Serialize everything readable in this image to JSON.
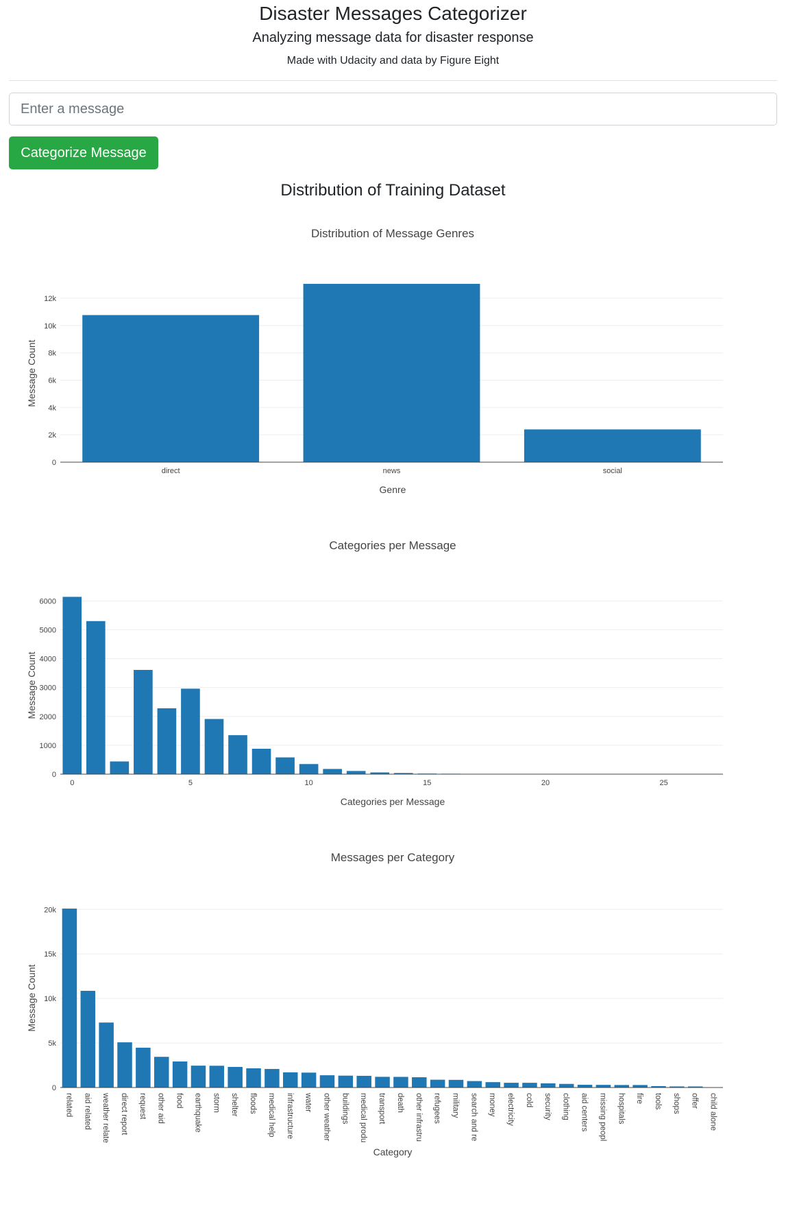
{
  "header": {
    "title": "Disaster Messages Categorizer",
    "subtitle": "Analyzing message data for disaster response",
    "credit": "Made with Udacity and data by Figure Eight"
  },
  "form": {
    "placeholder": "Enter a message",
    "value": "",
    "button_label": "Categorize Message"
  },
  "section_title": "Distribution of Training Dataset",
  "colors": {
    "bar": "#1f77b4",
    "button": "#28a745"
  },
  "chart_data": [
    {
      "type": "bar",
      "title": "Distribution of Message Genres",
      "xlabel": "Genre",
      "ylabel": "Message Count",
      "categories": [
        "direct",
        "news",
        "social"
      ],
      "values": [
        10766,
        13054,
        2396
      ],
      "ylim": [
        0,
        13000
      ],
      "yticks": [
        0,
        2000,
        4000,
        6000,
        8000,
        10000,
        12000
      ],
      "ytick_labels": [
        "0",
        "2k",
        "4k",
        "6k",
        "8k",
        "10k",
        "12k"
      ],
      "grid": true
    },
    {
      "type": "bar",
      "title": "Categories per Message",
      "xlabel": "Categories per Message",
      "ylabel": "Message Count",
      "x": [
        0,
        1,
        2,
        3,
        4,
        5,
        6,
        7,
        8,
        9,
        10,
        11,
        12,
        13,
        14,
        15,
        16,
        17,
        18,
        19,
        20,
        21,
        22,
        23,
        24,
        25,
        26,
        27
      ],
      "values": [
        6140,
        5300,
        440,
        3610,
        2280,
        2960,
        1910,
        1350,
        880,
        580,
        350,
        180,
        110,
        60,
        40,
        20,
        15,
        10,
        10,
        8,
        8,
        5,
        5,
        0,
        3,
        0,
        0,
        5
      ],
      "xlim": [
        -0.5,
        27.5
      ],
      "ylim": [
        0,
        6150
      ],
      "xticks": [
        0,
        5,
        10,
        15,
        20,
        25
      ],
      "xtick_labels": [
        "0",
        "5",
        "10",
        "15",
        "20",
        "25"
      ],
      "yticks": [
        0,
        1000,
        2000,
        3000,
        4000,
        5000,
        6000
      ],
      "ytick_labels": [
        "0",
        "1000",
        "2000",
        "3000",
        "4000",
        "5000",
        "6000"
      ],
      "grid": true
    },
    {
      "type": "bar",
      "title": "Messages per Category",
      "xlabel": "Category",
      "ylabel": "Message Count",
      "categories": [
        "related",
        "aid related",
        "weather relate",
        "direct report",
        "request",
        "other aid",
        "food",
        "earthquake",
        "storm",
        "shelter",
        "floods",
        "medical help",
        "infrastructure",
        "water",
        "other weather",
        "buildings",
        "medical produ",
        "transport",
        "death",
        "other infrastru",
        "refugees",
        "military",
        "search and re",
        "money",
        "electricity",
        "cold",
        "security",
        "clothing",
        "aid centers",
        "missing peopl",
        "hospitals",
        "fire",
        "tools",
        "shops",
        "offer",
        "child alone"
      ],
      "values": [
        20094,
        10860,
        7297,
        5075,
        4474,
        3446,
        2923,
        2455,
        2443,
        2314,
        2155,
        2084,
        1705,
        1672,
        1376,
        1333,
        1313,
        1201,
        1194,
        1151,
        875,
        860,
        724,
        604,
        532,
        530,
        471,
        405,
        309,
        298,
        283,
        282,
        159,
        120,
        118,
        0
      ],
      "ylim": [
        0,
        20100
      ],
      "yticks": [
        0,
        5000,
        10000,
        15000,
        20000
      ],
      "ytick_labels": [
        "0",
        "5k",
        "10k",
        "15k",
        "20k"
      ],
      "grid": true
    }
  ]
}
